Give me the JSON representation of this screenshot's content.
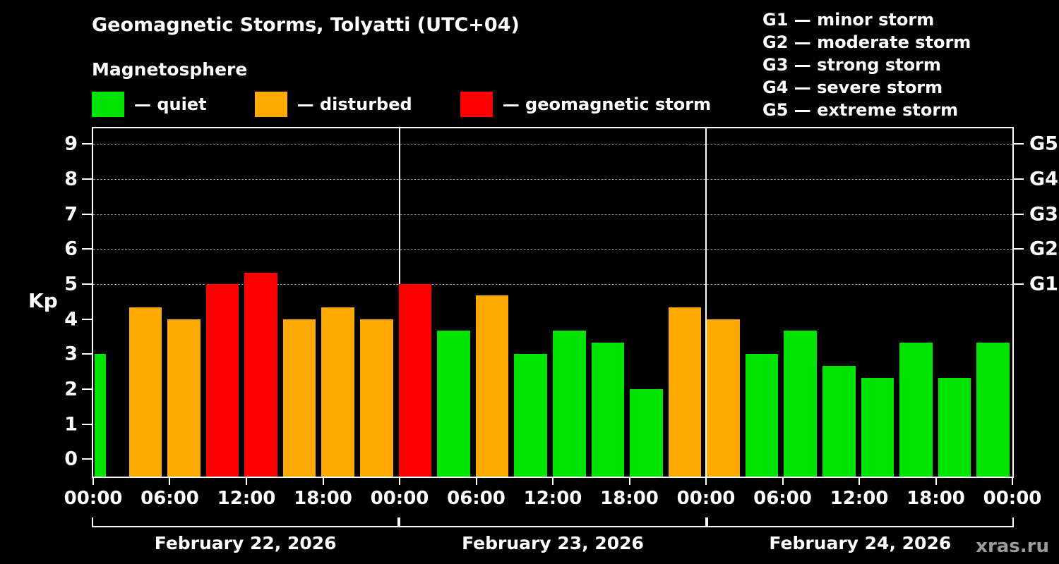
{
  "header": {
    "title": "Geomagnetic Storms, Tolyatti (UTC+04)",
    "subtitle": "Magnetosphere"
  },
  "legend": {
    "items": [
      {
        "label": "— quiet",
        "status": "quiet"
      },
      {
        "label": "— disturbed",
        "status": "disturbed"
      },
      {
        "label": "— geomagnetic storm",
        "status": "storm"
      }
    ]
  },
  "g_legend": {
    "items": [
      "G1 — minor storm",
      "G2 — moderate storm",
      "G3 — strong storm",
      "G4 — severe storm",
      "G5 — extreme storm"
    ]
  },
  "palette": {
    "quiet": "#00e400",
    "disturbed": "#ffaa00",
    "storm": "#ff0000",
    "background": "#000000",
    "axis": "#ffffff",
    "grid": "#a8a8a8",
    "watermark": "#9c9c9c"
  },
  "axes": {
    "y_label": "Kp",
    "y_ticks": [
      0,
      1,
      2,
      3,
      4,
      5,
      6,
      7,
      8,
      9
    ],
    "right_ticks": [
      {
        "value": 5,
        "label": "G1"
      },
      {
        "value": 6,
        "label": "G2"
      },
      {
        "value": 7,
        "label": "G3"
      },
      {
        "value": 8,
        "label": "G4"
      },
      {
        "value": 9,
        "label": "G5"
      }
    ],
    "x_tick_labels": [
      "00:00",
      "06:00",
      "12:00",
      "18:00",
      "00:00",
      "06:00",
      "12:00",
      "18:00",
      "00:00",
      "06:00",
      "12:00",
      "18:00",
      "00:00"
    ]
  },
  "chart_data": {
    "type": "bar",
    "title": "Geomagnetic Storms, Tolyatti (UTC+04)",
    "ylabel": "Kp",
    "ylim": [
      0,
      9
    ],
    "interval_hours": 3,
    "grid_levels": [
      5,
      6,
      7,
      8,
      9
    ],
    "legend": [
      "quiet",
      "disturbed",
      "geomagnetic storm"
    ],
    "days": [
      {
        "date": "February 22, 2026",
        "times": [
          "00:00",
          "03:00",
          "06:00",
          "09:00",
          "12:00",
          "15:00",
          "18:00",
          "21:00"
        ],
        "kp": [
          3.0,
          4.33,
          4.0,
          5.0,
          5.33,
          4.0,
          4.33,
          4.0
        ],
        "status": [
          "quiet",
          "disturbed",
          "disturbed",
          "storm",
          "storm",
          "disturbed",
          "disturbed",
          "disturbed"
        ]
      },
      {
        "date": "February 23, 2026",
        "times": [
          "00:00",
          "03:00",
          "06:00",
          "09:00",
          "12:00",
          "15:00",
          "18:00",
          "21:00"
        ],
        "kp": [
          5.0,
          3.67,
          4.67,
          3.0,
          3.67,
          3.33,
          2.0,
          4.33
        ],
        "status": [
          "storm",
          "quiet",
          "disturbed",
          "quiet",
          "quiet",
          "quiet",
          "quiet",
          "disturbed"
        ]
      },
      {
        "date": "February 24, 2026",
        "times": [
          "00:00",
          "03:00",
          "06:00",
          "09:00",
          "12:00",
          "15:00",
          "18:00",
          "21:00"
        ],
        "kp": [
          4.0,
          3.0,
          3.67,
          2.67,
          2.33,
          3.33,
          2.33,
          3.33
        ],
        "status": [
          "disturbed",
          "quiet",
          "quiet",
          "quiet",
          "quiet",
          "quiet",
          "quiet",
          "quiet"
        ]
      }
    ]
  },
  "footer": {
    "watermark": "xras.ru"
  }
}
